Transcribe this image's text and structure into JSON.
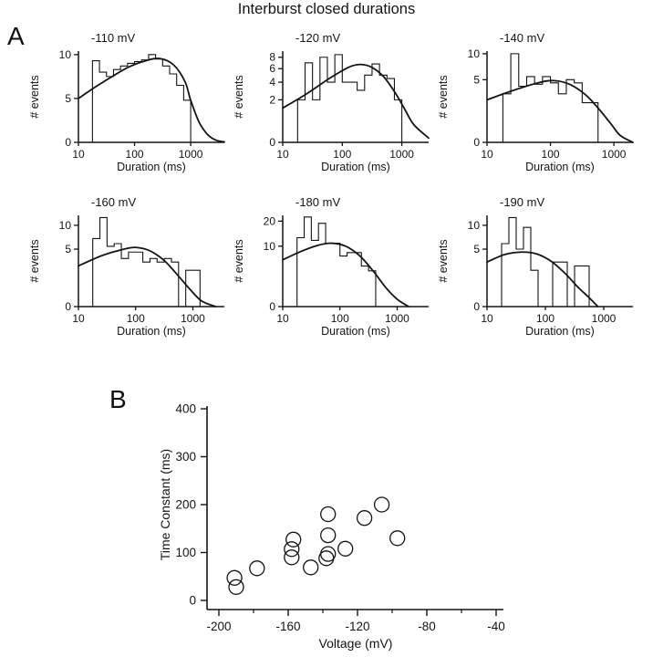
{
  "title": "Interburst closed durations",
  "panel_a_label": "A",
  "panel_b_label": "B",
  "colors": {
    "ink": "#141414",
    "paper": "#ffffff"
  },
  "chart_data": [
    {
      "type": "bar",
      "subtype": "log-binned-histogram-with-fit",
      "panel": "A",
      "title": "-110 mV",
      "xlabel": "Duration (ms)",
      "ylabel": "# events",
      "x_scale": "log",
      "y_scale": "linear",
      "x_ticks": [
        10,
        100,
        1000
      ],
      "y_ticks": [
        0,
        5,
        10
      ],
      "y_axis_max": 10.4,
      "x_max_log": 3.6,
      "bin_start_log": 1.25,
      "bin_step_log": 0.125,
      "bin_heights": [
        9.3,
        8,
        7.5,
        8.3,
        8.7,
        9,
        9.2,
        9.4,
        10,
        9.5,
        8.7,
        7.8,
        6.5,
        4.8
      ],
      "fit_curve_logx_y": [
        [
          1,
          5
        ],
        [
          1.3,
          6.3
        ],
        [
          1.6,
          7.5
        ],
        [
          1.9,
          8.6
        ],
        [
          2.2,
          9.3
        ],
        [
          2.45,
          9.55
        ],
        [
          2.7,
          8.8
        ],
        [
          2.9,
          6.9
        ],
        [
          3.0,
          4.8
        ],
        [
          3.15,
          2.3
        ],
        [
          3.3,
          0.9
        ],
        [
          3.45,
          0.25
        ],
        [
          3.6,
          0.05
        ]
      ]
    },
    {
      "type": "bar",
      "subtype": "log-binned-histogram-with-fit",
      "panel": "A",
      "title": "-120 mV",
      "xlabel": "Duration (ms)",
      "ylabel": "# events",
      "x_scale": "log",
      "y_scale": "sqrt",
      "x_ticks": [
        10,
        100,
        1000
      ],
      "y_ticks": [
        0,
        2,
        4,
        6,
        8
      ],
      "y_axis_max": 9.2,
      "x_max_log": 3.45,
      "bin_start_log": 1.25,
      "bin_step_log": 0.125,
      "bin_heights": [
        2,
        7,
        2,
        8,
        4,
        8.5,
        4,
        4,
        3,
        5,
        6.8,
        5,
        4.5,
        2
      ],
      "fit_curve_logx_y": [
        [
          1,
          1.3
        ],
        [
          1.4,
          2.6
        ],
        [
          1.8,
          4.6
        ],
        [
          2.1,
          6.2
        ],
        [
          2.3,
          6.7
        ],
        [
          2.5,
          6.2
        ],
        [
          2.7,
          4.7
        ],
        [
          2.9,
          2.6
        ],
        [
          3.05,
          1.2
        ],
        [
          3.2,
          0.35
        ],
        [
          3.45,
          0.02
        ]
      ]
    },
    {
      "type": "bar",
      "subtype": "log-binned-histogram-with-fit",
      "panel": "A",
      "title": "-140 mV",
      "xlabel": "Duration (ms)",
      "ylabel": "# events",
      "x_scale": "log",
      "y_scale": "sqrt",
      "x_ticks": [
        10,
        100,
        1000
      ],
      "y_ticks": [
        0,
        5,
        10
      ],
      "y_axis_max": 10.6,
      "x_max_log": 3.3,
      "bin_start_log": 1.25,
      "bin_step_log": 0.125,
      "bin_heights": [
        3,
        10,
        4,
        5.5,
        4.3,
        5.5,
        4.5,
        3,
        5,
        4.5,
        2,
        2
      ],
      "fit_curve_logx_y": [
        [
          1,
          2.3
        ],
        [
          1.4,
          3.4
        ],
        [
          1.8,
          4.5
        ],
        [
          2.05,
          4.85
        ],
        [
          2.3,
          4.3
        ],
        [
          2.55,
          2.9
        ],
        [
          2.75,
          1.5
        ],
        [
          2.95,
          0.45
        ],
        [
          3.1,
          0.06
        ],
        [
          3.3,
          0
        ]
      ]
    },
    {
      "type": "bar",
      "subtype": "log-binned-histogram-with-fit",
      "panel": "A",
      "title": "-160 mV",
      "xlabel": "Duration (ms)",
      "ylabel": "# events",
      "x_scale": "log",
      "y_scale": "sqrt",
      "x_ticks": [
        10,
        100,
        1000
      ],
      "y_ticks": [
        0,
        5,
        10
      ],
      "y_axis_max": 12.6,
      "x_max_log": 3.55,
      "bin_start_log": 1.25,
      "bin_step_log": 0.125,
      "bin_heights": [
        7,
        12,
        5.5,
        6,
        3.5,
        4.5,
        4.5,
        3,
        3.5,
        3,
        3.5,
        3,
        0,
        2,
        2
      ],
      "fit_curve_logx_y": [
        [
          1,
          2.5
        ],
        [
          1.4,
          3.9
        ],
        [
          1.8,
          5.0
        ],
        [
          2.0,
          5.3
        ],
        [
          2.25,
          4.7
        ],
        [
          2.5,
          3.2
        ],
        [
          2.75,
          1.4
        ],
        [
          2.95,
          0.45
        ],
        [
          3.15,
          0.05
        ],
        [
          3.4,
          0
        ]
      ]
    },
    {
      "type": "bar",
      "subtype": "log-binned-histogram-with-fit",
      "panel": "A",
      "title": "-180 mV",
      "xlabel": "Duration (ms)",
      "ylabel": "# events",
      "x_scale": "log",
      "y_scale": "sqrt",
      "x_ticks": [
        10,
        100,
        1000
      ],
      "y_ticks": [
        0,
        10,
        20
      ],
      "y_axis_max": 22.8,
      "x_max_log": 3.55,
      "bin_start_log": 1.25,
      "bin_step_log": 0.125,
      "bin_heights": [
        13,
        22,
        12,
        19,
        11,
        11,
        7,
        8,
        8,
        4.5,
        3.5
      ],
      "fit_curve_logx_y": [
        [
          1,
          6
        ],
        [
          1.3,
          8.2
        ],
        [
          1.6,
          10.2
        ],
        [
          1.85,
          11
        ],
        [
          2.1,
          10
        ],
        [
          2.35,
          7
        ],
        [
          2.6,
          3.2
        ],
        [
          2.8,
          1.0
        ],
        [
          3.0,
          0.15
        ],
        [
          3.2,
          0
        ]
      ]
    },
    {
      "type": "bar",
      "subtype": "log-binned-histogram-with-fit",
      "panel": "A",
      "title": "-190 mV",
      "xlabel": "Duration (ms)",
      "ylabel": "# events",
      "x_scale": "log",
      "y_scale": "sqrt",
      "x_ticks": [
        10,
        100,
        1000
      ],
      "y_ticks": [
        0,
        5,
        10
      ],
      "y_axis_max": 12.6,
      "x_max_log": 3.5,
      "bin_start_log": 1.25,
      "bin_step_log": 0.125,
      "bin_heights": [
        6,
        12,
        5,
        9.5,
        2,
        0,
        0,
        3,
        3,
        0,
        2.5,
        2.5
      ],
      "fit_curve_logx_y": [
        [
          1,
          3.0
        ],
        [
          1.3,
          4.1
        ],
        [
          1.6,
          4.5
        ],
        [
          1.85,
          4.2
        ],
        [
          2.1,
          3.1
        ],
        [
          2.35,
          1.6
        ],
        [
          2.55,
          0.6
        ],
        [
          2.75,
          0.12
        ],
        [
          2.9,
          0
        ]
      ]
    },
    {
      "type": "scatter",
      "panel": "B",
      "xlabel": "Voltage (mV)",
      "ylabel": "Time Constant (ms)",
      "x_ticks": [
        -200,
        -160,
        -120,
        -80,
        -40
      ],
      "x_minor_ticks": [
        -180,
        -140,
        -100,
        -60
      ],
      "y_ticks": [
        0,
        100,
        200,
        300,
        400
      ],
      "x_range": [
        -200,
        -40
      ],
      "y_range": [
        0,
        400
      ],
      "points": [
        [
          -191,
          47
        ],
        [
          -190,
          28
        ],
        [
          -178,
          67
        ],
        [
          -157,
          127
        ],
        [
          -158,
          107
        ],
        [
          -158,
          90
        ],
        [
          -147,
          69
        ],
        [
          -137,
          180
        ],
        [
          -137,
          136
        ],
        [
          -137,
          97
        ],
        [
          -138,
          88
        ],
        [
          -127,
          108
        ],
        [
          -116,
          172
        ],
        [
          -106,
          200
        ],
        [
          -97,
          130
        ]
      ]
    }
  ]
}
